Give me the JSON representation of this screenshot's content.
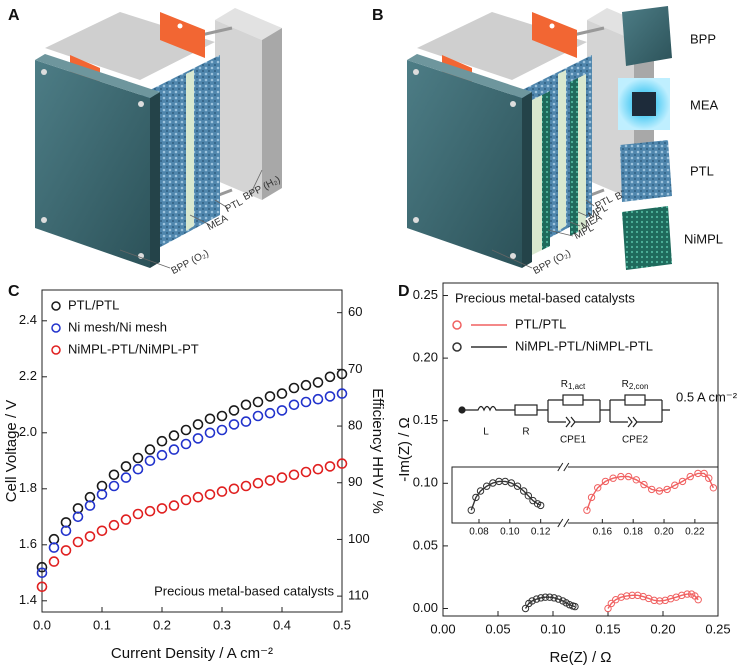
{
  "diagrams": [
    {
      "panel": "A",
      "labels": [
        "BPP (H₂)",
        "PTL",
        "MEA",
        "BPP (O₂)"
      ]
    },
    {
      "panel": "B",
      "labels": [
        "BPP (H₂)",
        "PTL",
        "MPL",
        "MEA",
        "MPL",
        "BPP (O₂)"
      ]
    }
  ],
  "components": [
    "BPP",
    "MEA",
    "PTL",
    "NiMPL"
  ],
  "circuit": {
    "elements": [
      {
        "symbol": "L"
      },
      {
        "symbol": "R"
      },
      {
        "symbol": "R",
        "sub": "1,act"
      },
      {
        "symbol": "R",
        "sub": "2,con"
      },
      {
        "symbol": "CPE1"
      },
      {
        "symbol": "CPE2"
      }
    ],
    "current": "0.5 A cm⁻²"
  },
  "chart_data": [
    {
      "type": "scatter",
      "panel": "C",
      "style": "marker",
      "xlabel": "Current Density / A cm⁻²",
      "ylabel": "Cell Voltage / V",
      "y2label": "Efficiency HHV / %",
      "annotation": "Precious metal-based catalysts",
      "xlim": [
        0,
        0.5
      ],
      "xticks": [
        {
          "value": 0,
          "label": "0.0"
        },
        0.1,
        0.2,
        0.3,
        0.4,
        0.5
      ],
      "ylim": [
        1.36,
        2.51
      ],
      "yticks": [
        1.4,
        1.6,
        1.8,
        {
          "value": 2.0,
          "label": "2.0"
        },
        2.2,
        2.4
      ],
      "y2lim": [
        112.8,
        56
      ],
      "y2ticks": [
        60,
        70,
        80,
        90,
        100,
        110
      ],
      "legend": "upper left",
      "x": [
        0,
        0.02,
        0.04,
        0.06,
        0.08,
        0.1,
        0.12,
        0.14,
        0.16,
        0.18,
        0.2,
        0.22,
        0.24,
        0.26,
        0.28,
        0.3,
        0.32,
        0.34,
        0.36,
        0.38,
        0.4,
        0.42,
        0.44,
        0.46,
        0.48,
        0.5
      ],
      "series": [
        {
          "name": "PTL/PTL",
          "color": "#1a1a1a",
          "values": [
            1.52,
            1.62,
            1.68,
            1.73,
            1.77,
            1.81,
            1.85,
            1.88,
            1.91,
            1.94,
            1.97,
            1.99,
            2.01,
            2.03,
            2.05,
            2.06,
            2.08,
            2.1,
            2.11,
            2.13,
            2.14,
            2.16,
            2.17,
            2.18,
            2.2,
            2.21
          ]
        },
        {
          "name": "Ni mesh/Ni mesh",
          "color": "#2233cc",
          "values": [
            1.5,
            1.59,
            1.65,
            1.7,
            1.74,
            1.78,
            1.81,
            1.84,
            1.87,
            1.9,
            1.92,
            1.94,
            1.96,
            1.98,
            2.0,
            2.01,
            2.03,
            2.04,
            2.06,
            2.07,
            2.08,
            2.1,
            2.11,
            2.12,
            2.13,
            2.14
          ]
        },
        {
          "name": "NiMPL-PTL/NiMPL-PT",
          "color": "#e02020",
          "values": [
            1.45,
            1.54,
            1.58,
            1.61,
            1.63,
            1.65,
            1.67,
            1.69,
            1.71,
            1.72,
            1.73,
            1.74,
            1.76,
            1.77,
            1.78,
            1.79,
            1.8,
            1.81,
            1.82,
            1.83,
            1.84,
            1.85,
            1.86,
            1.87,
            1.88,
            1.89
          ]
        }
      ]
    },
    {
      "type": "scatter",
      "panel": "D",
      "style": "marker+line",
      "xlabel": "Re(Z) / Ω",
      "ylabel": "-Im(Z) / Ω",
      "legend_title": "Precious metal-based catalysts",
      "xlim": [
        0,
        0.25
      ],
      "xticks": [
        {
          "value": 0,
          "label": "0.00"
        },
        {
          "value": 0.05,
          "label": "0.05"
        },
        {
          "value": 0.1,
          "label": "0.10"
        },
        {
          "value": 0.15,
          "label": "0.15"
        },
        {
          "value": 0.2,
          "label": "0.20"
        },
        {
          "value": 0.25,
          "label": "0.25"
        }
      ],
      "ylim": [
        -0.006,
        0.26
      ],
      "yticks": [
        {
          "value": 0,
          "label": "0.00"
        },
        {
          "value": 0.05,
          "label": "0.05"
        },
        {
          "value": 0.1,
          "label": "0.10"
        },
        {
          "value": 0.15,
          "label": "0.15"
        },
        {
          "value": 0.2,
          "label": "0.20"
        },
        {
          "value": 0.25,
          "label": "0.25"
        }
      ],
      "legend": "upper left",
      "inset": {
        "xlim": [
          0.0625,
          0.235
        ],
        "ylim": [
          -0.004,
          0.0135
        ],
        "xticks": [
          {
            "value": 0.08,
            "label": "0.08"
          },
          {
            "value": 0.1,
            "label": "0.10"
          },
          {
            "value": 0.12,
            "label": "0.12"
          },
          {
            "value": 0.16,
            "label": "0.16"
          },
          {
            "value": 0.18,
            "label": "0.18"
          },
          {
            "value": 0.2,
            "label": "0.20"
          },
          {
            "value": 0.22,
            "label": "0.22"
          }
        ]
      },
      "series": [
        {
          "name": "PTL/PTL",
          "color": "#f06060",
          "x": [
            0.15,
            0.153,
            0.157,
            0.162,
            0.167,
            0.172,
            0.177,
            0.182,
            0.187,
            0.192,
            0.197,
            0.202,
            0.207,
            0.212,
            0.217,
            0.222,
            0.226,
            0.229,
            0.232
          ],
          "values": [
            0,
            0.004,
            0.007,
            0.009,
            0.01,
            0.0105,
            0.0105,
            0.0095,
            0.008,
            0.0065,
            0.006,
            0.0065,
            0.0078,
            0.009,
            0.0105,
            0.0115,
            0.0115,
            0.01,
            0.007
          ]
        },
        {
          "name": "NiMPL-PTL/NiMPL-PTL",
          "color": "#333333",
          "x": [
            0.075,
            0.078,
            0.081,
            0.085,
            0.089,
            0.093,
            0.097,
            0.101,
            0.105,
            0.109,
            0.112,
            0.115,
            0.118,
            0.12
          ],
          "values": [
            0,
            0.004,
            0.006,
            0.0075,
            0.0085,
            0.009,
            0.009,
            0.0085,
            0.0075,
            0.006,
            0.0045,
            0.003,
            0.002,
            0.0015
          ]
        }
      ]
    }
  ]
}
